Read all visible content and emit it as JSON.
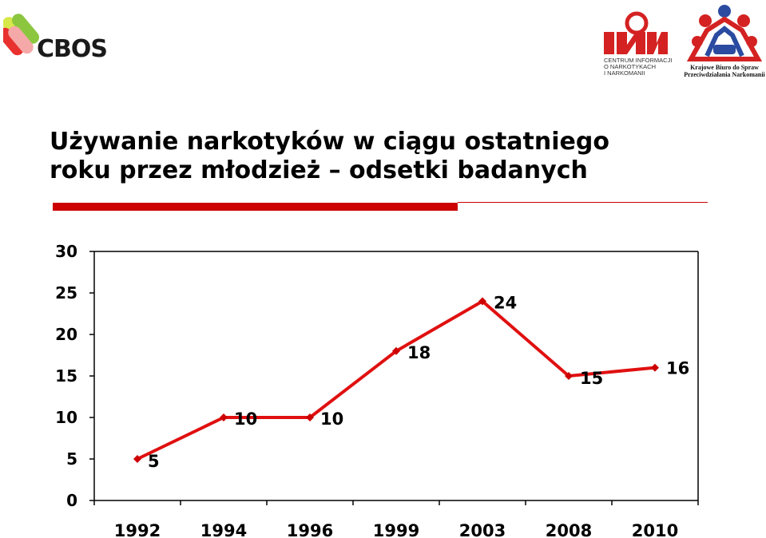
{
  "logos": {
    "cbos": {
      "word": "CBOS"
    },
    "cin": {
      "text_lines": [
        "CENTRUM INFORMACJI",
        "O NARKOTYKACH",
        "I NARKOMANII"
      ]
    },
    "kbpn": {
      "text_lines": [
        "Krajowe Biuro do Spraw",
        "Przeciwdziałania Narkomanii"
      ]
    }
  },
  "title": {
    "line1": "Używanie narkotyków w ciągu ostatniego",
    "line2": "roku przez młodzież – odsetki badanych"
  },
  "colors": {
    "accent": "#cc0000",
    "line": "#e01010"
  },
  "chart_data": {
    "type": "line",
    "categories": [
      "1992",
      "1994",
      "1996",
      "1999",
      "2003",
      "2008",
      "2010"
    ],
    "values": [
      5,
      10,
      10,
      18,
      24,
      15,
      16
    ],
    "data_labels": [
      "5",
      "10",
      "10",
      "18",
      "24",
      "15",
      "16"
    ],
    "ylim": [
      0,
      30
    ],
    "yticks": [
      "0",
      "5",
      "10",
      "15",
      "20",
      "25",
      "30"
    ],
    "grid": false,
    "legend": "none",
    "title": "",
    "xlabel": "",
    "ylabel": ""
  }
}
